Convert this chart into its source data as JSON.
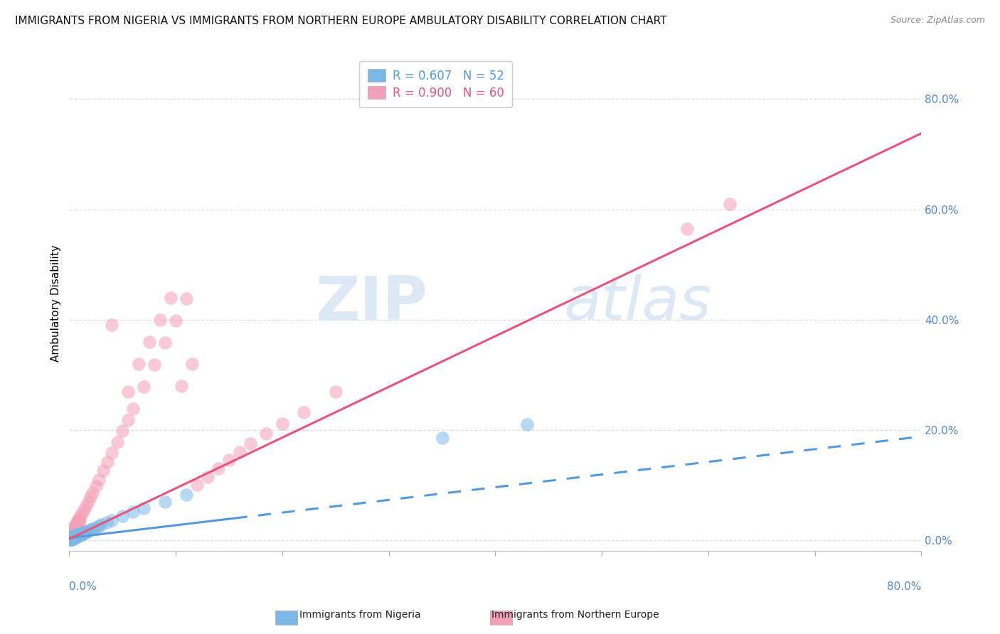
{
  "title": "IMMIGRANTS FROM NIGERIA VS IMMIGRANTS FROM NORTHERN EUROPE AMBULATORY DISABILITY CORRELATION CHART",
  "source": "Source: ZipAtlas.com",
  "ylabel": "Ambulatory Disability",
  "legend_nigeria": "R = 0.607   N = 52",
  "legend_north_eu": "R = 0.900   N = 60",
  "legend_label_nigeria": "Immigrants from Nigeria",
  "legend_label_north_eu": "Immigrants from Northern Europe",
  "watermark_zip": "ZIP",
  "watermark_atlas": "atlas",
  "xmin": 0.0,
  "xmax": 0.8,
  "ymin": -0.02,
  "ymax": 0.88,
  "color_nigeria": "#7bb8e8",
  "color_north_eu": "#f4a0b8",
  "color_nigeria_line": "#5599dd",
  "color_north_eu_line": "#e8547a",
  "ytick_color": "#5588cc",
  "xtick_label_color": "#5588cc",
  "nigeria_scatter_x": [
    0.001,
    0.001,
    0.001,
    0.002,
    0.002,
    0.002,
    0.003,
    0.003,
    0.003,
    0.004,
    0.004,
    0.004,
    0.005,
    0.005,
    0.005,
    0.006,
    0.006,
    0.006,
    0.007,
    0.007,
    0.007,
    0.008,
    0.008,
    0.008,
    0.009,
    0.009,
    0.01,
    0.01,
    0.011,
    0.011,
    0.012,
    0.012,
    0.013,
    0.014,
    0.015,
    0.016,
    0.017,
    0.018,
    0.02,
    0.022,
    0.025,
    0.028,
    0.03,
    0.035,
    0.04,
    0.05,
    0.06,
    0.07,
    0.09,
    0.11,
    0.35,
    0.43
  ],
  "nigeria_scatter_y": [
    0.0,
    0.002,
    0.004,
    0.001,
    0.003,
    0.005,
    0.002,
    0.004,
    0.006,
    0.003,
    0.005,
    0.007,
    0.004,
    0.006,
    0.008,
    0.005,
    0.007,
    0.009,
    0.006,
    0.008,
    0.01,
    0.007,
    0.009,
    0.011,
    0.008,
    0.01,
    0.009,
    0.011,
    0.01,
    0.012,
    0.011,
    0.013,
    0.012,
    0.013,
    0.014,
    0.015,
    0.016,
    0.017,
    0.019,
    0.021,
    0.023,
    0.026,
    0.028,
    0.032,
    0.036,
    0.044,
    0.052,
    0.058,
    0.07,
    0.082,
    0.185,
    0.21
  ],
  "northeu_scatter_x": [
    0.001,
    0.001,
    0.002,
    0.002,
    0.003,
    0.003,
    0.004,
    0.004,
    0.005,
    0.005,
    0.006,
    0.006,
    0.007,
    0.007,
    0.008,
    0.008,
    0.009,
    0.009,
    0.01,
    0.01,
    0.012,
    0.014,
    0.016,
    0.018,
    0.02,
    0.022,
    0.025,
    0.028,
    0.032,
    0.036,
    0.04,
    0.045,
    0.05,
    0.055,
    0.06,
    0.07,
    0.08,
    0.09,
    0.1,
    0.11,
    0.12,
    0.13,
    0.14,
    0.15,
    0.16,
    0.17,
    0.185,
    0.2,
    0.22,
    0.25,
    0.04,
    0.055,
    0.065,
    0.075,
    0.085,
    0.095,
    0.105,
    0.115,
    0.58,
    0.62
  ],
  "northeu_scatter_y": [
    0.005,
    0.01,
    0.008,
    0.015,
    0.012,
    0.018,
    0.015,
    0.022,
    0.018,
    0.025,
    0.022,
    0.028,
    0.025,
    0.032,
    0.028,
    0.035,
    0.032,
    0.038,
    0.035,
    0.042,
    0.048,
    0.055,
    0.062,
    0.07,
    0.078,
    0.086,
    0.098,
    0.11,
    0.126,
    0.142,
    0.158,
    0.178,
    0.198,
    0.218,
    0.238,
    0.278,
    0.318,
    0.358,
    0.398,
    0.438,
    0.1,
    0.115,
    0.13,
    0.145,
    0.16,
    0.175,
    0.193,
    0.212,
    0.232,
    0.27,
    0.39,
    0.27,
    0.32,
    0.36,
    0.4,
    0.44,
    0.28,
    0.32,
    0.565,
    0.61
  ],
  "nig_line_solid_x0": 0.0,
  "nig_line_solid_x1": 0.155,
  "nig_line_dash_x1": 0.8,
  "nig_slope": 0.23,
  "nig_intercept": 0.004,
  "neu_line_x0": 0.0,
  "neu_line_x1": 0.8,
  "neu_slope": 0.92,
  "neu_intercept": 0.002
}
